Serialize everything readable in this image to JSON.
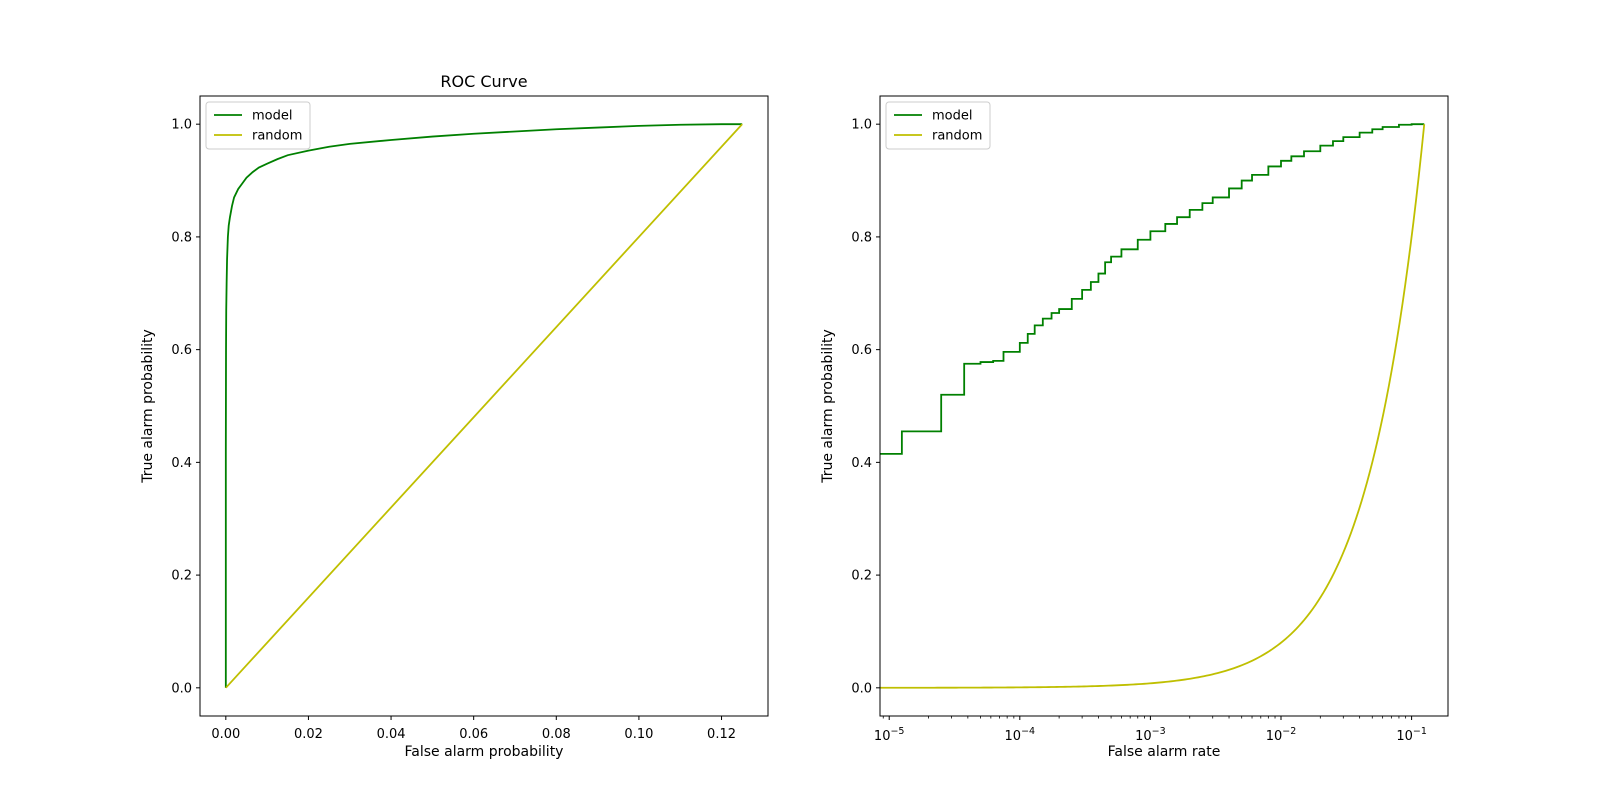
{
  "chart_data": [
    {
      "type": "line",
      "title": "ROC Curve",
      "xlabel": "False alarm probability",
      "ylabel": "True alarm probability",
      "xscale": "linear",
      "xlim": [
        -0.00625,
        0.13125
      ],
      "ylim": [
        -0.05,
        1.05
      ],
      "xticks": [
        0.0,
        0.02,
        0.04,
        0.06,
        0.08,
        0.1,
        0.12
      ],
      "xtick_labels": [
        "0.00",
        "0.02",
        "0.04",
        "0.06",
        "0.08",
        "0.10",
        "0.12"
      ],
      "yticks": [
        0.0,
        0.2,
        0.4,
        0.6,
        0.8,
        1.0
      ],
      "ytick_labels": [
        "0.0",
        "0.2",
        "0.4",
        "0.6",
        "0.8",
        "1.0"
      ],
      "grid": false,
      "legend": "upper left",
      "series": [
        {
          "name": "model",
          "color": "#008000",
          "step": false,
          "x": [
            0,
            0,
            5e-05,
            0.0001,
            0.0002,
            0.0003,
            0.0005,
            0.0007,
            0.001,
            0.0015,
            0.002,
            0.003,
            0.004,
            0.005,
            0.0065,
            0.008,
            0.01,
            0.0125,
            0.015,
            0.02,
            0.025,
            0.03,
            0.04,
            0.05,
            0.06,
            0.07,
            0.08,
            0.09,
            0.1,
            0.11,
            0.12,
            0.125
          ],
          "y": [
            0,
            0.42,
            0.6,
            0.67,
            0.72,
            0.76,
            0.8,
            0.82,
            0.835,
            0.855,
            0.87,
            0.885,
            0.895,
            0.905,
            0.915,
            0.923,
            0.93,
            0.938,
            0.945,
            0.953,
            0.96,
            0.965,
            0.972,
            0.978,
            0.983,
            0.987,
            0.991,
            0.994,
            0.997,
            0.999,
            1.0,
            1.0
          ]
        },
        {
          "name": "random",
          "color": "#bfbf00",
          "step": false,
          "x": [
            0,
            0.125
          ],
          "y": [
            0,
            1.0
          ]
        }
      ]
    },
    {
      "type": "line",
      "title": "",
      "xlabel": "False alarm rate",
      "ylabel": "True alarm probability",
      "xscale": "log",
      "xlim": [
        8.5e-06,
        0.19
      ],
      "ylim": [
        -0.05,
        1.05
      ],
      "xticks": [
        1e-05,
        0.0001,
        0.001,
        0.01,
        0.1
      ],
      "xtick_base": "10",
      "xtick_exponents": [
        "−5",
        "−4",
        "−3",
        "−2",
        "−1"
      ],
      "yticks": [
        0.0,
        0.2,
        0.4,
        0.6,
        0.8,
        1.0
      ],
      "ytick_labels": [
        "0.0",
        "0.2",
        "0.4",
        "0.6",
        "0.8",
        "1.0"
      ],
      "grid": false,
      "legend": "upper left",
      "series": [
        {
          "name": "model",
          "color": "#008000",
          "step": true,
          "x": [
            8.5e-06,
            1.25e-05,
            2.5e-05,
            3.75e-05,
            5e-05,
            6.25e-05,
            7.5e-05,
            0.0001,
            0.000115,
            0.00013,
            0.00015,
            0.000175,
            0.0002,
            0.00025,
            0.0003,
            0.00035,
            0.0004,
            0.00045,
            0.0005,
            0.0006,
            0.0008,
            0.001,
            0.0013,
            0.0016,
            0.002,
            0.0025,
            0.003,
            0.004,
            0.005,
            0.006,
            0.008,
            0.01,
            0.012,
            0.015,
            0.02,
            0.025,
            0.03,
            0.04,
            0.05,
            0.06,
            0.08,
            0.1,
            0.125
          ],
          "y": [
            0.415,
            0.455,
            0.52,
            0.575,
            0.578,
            0.58,
            0.596,
            0.612,
            0.628,
            0.643,
            0.655,
            0.665,
            0.672,
            0.69,
            0.706,
            0.72,
            0.735,
            0.755,
            0.765,
            0.778,
            0.795,
            0.81,
            0.823,
            0.835,
            0.848,
            0.86,
            0.87,
            0.886,
            0.9,
            0.91,
            0.925,
            0.935,
            0.943,
            0.952,
            0.962,
            0.97,
            0.977,
            0.985,
            0.991,
            0.995,
            0.999,
            1.0,
            1.0
          ]
        },
        {
          "name": "random",
          "color": "#bfbf00",
          "step": false,
          "x": "same as false alarm rate",
          "y": [
            0,
            1.0
          ],
          "relation": "y = x / 0.125"
        }
      ]
    }
  ]
}
